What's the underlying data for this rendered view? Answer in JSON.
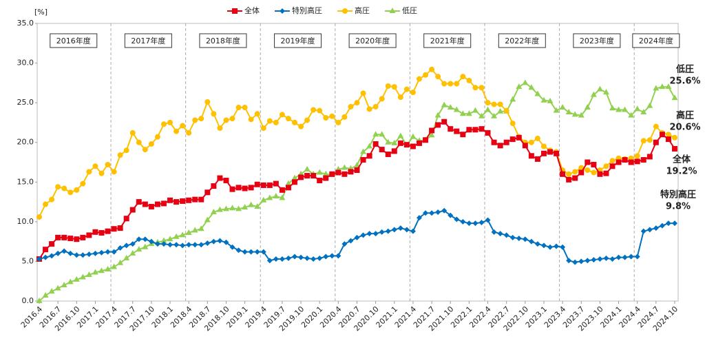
{
  "chart_data": {
    "type": "line",
    "y_label": "[%]",
    "categories": [
      "2016.4",
      null,
      null,
      "2016.7",
      null,
      null,
      "2016.10",
      null,
      null,
      "2017.1",
      null,
      null,
      "2017.4",
      null,
      null,
      "2017.7",
      null,
      null,
      "2017.10",
      null,
      null,
      "2018.1",
      null,
      null,
      "2018.4",
      null,
      null,
      "2018.7",
      null,
      null,
      "2018.10",
      null,
      null,
      "2019.1",
      null,
      null,
      "2019.4",
      null,
      null,
      "2019.7",
      null,
      null,
      "2019.10",
      null,
      null,
      "2020.1",
      null,
      null,
      "2020.4",
      null,
      null,
      "2020.7",
      null,
      null,
      "2020.10",
      null,
      null,
      "2021.1",
      null,
      null,
      "2021.4",
      null,
      null,
      "2021.7",
      null,
      null,
      "2021.10",
      null,
      null,
      "2022.1",
      null,
      null,
      "2022.4",
      null,
      null,
      "2022.7",
      null,
      null,
      "2022.10",
      null,
      null,
      "2023.1",
      null,
      null,
      "2023.4",
      null,
      null,
      "2023.7",
      null,
      null,
      "2023.10",
      null,
      null,
      "2024.1",
      null,
      null,
      "2024.4",
      null,
      null,
      "2024.7",
      null,
      null,
      "2024.10"
    ],
    "fiscal_years": [
      "2016年度",
      "2017年度",
      "2018年度",
      "2019年度",
      "2020年度",
      "2021年度",
      "2022年度",
      "2023年度",
      "2024年度"
    ],
    "series": [
      {
        "name": "全体",
        "color": "#e60012",
        "marker": "square",
        "end_label": "19.2%",
        "values": [
          5.3,
          6.5,
          7.2,
          8.0,
          8.0,
          7.9,
          7.8,
          8.0,
          8.3,
          8.7,
          8.6,
          8.8,
          9.1,
          9.2,
          10.4,
          11.5,
          12.5,
          12.2,
          11.9,
          12.2,
          12.3,
          12.7,
          12.5,
          12.6,
          12.7,
          12.8,
          12.8,
          13.7,
          14.5,
          15.5,
          15.2,
          14.1,
          14.3,
          14.2,
          14.3,
          14.7,
          14.6,
          14.6,
          14.8,
          14.0,
          14.3,
          15.0,
          15.6,
          15.8,
          15.8,
          15.2,
          15.5,
          16.0,
          16.2,
          16.0,
          16.3,
          16.5,
          17.8,
          18.3,
          19.8,
          19.1,
          18.5,
          18.9,
          19.9,
          19.7,
          19.5,
          19.9,
          20.3,
          21.5,
          22.2,
          22.6,
          21.7,
          21.4,
          21.0,
          21.6,
          21.6,
          21.7,
          21.2,
          20.0,
          19.6,
          20.0,
          20.4,
          20.6,
          19.6,
          18.3,
          17.9,
          18.6,
          18.8,
          18.6,
          16.0,
          15.3,
          15.5,
          16.2,
          17.5,
          17.2,
          16.0,
          16.1,
          17.0,
          17.5,
          17.8,
          17.5,
          17.6,
          17.8,
          18.2,
          20.0,
          21.0,
          20.4,
          19.2
        ]
      },
      {
        "name": "特別高圧",
        "color": "#0070c0",
        "marker": "diamond",
        "end_label": "9.8%",
        "values": [
          5.3,
          5.5,
          5.7,
          6.0,
          6.3,
          6.0,
          5.8,
          5.8,
          5.9,
          6.0,
          6.1,
          6.2,
          6.2,
          6.7,
          7.0,
          7.2,
          7.8,
          7.8,
          7.5,
          7.2,
          7.2,
          7.1,
          7.1,
          7.0,
          7.1,
          7.1,
          7.1,
          7.3,
          7.5,
          7.6,
          7.4,
          6.8,
          6.4,
          6.2,
          6.2,
          6.2,
          6.2,
          5.1,
          5.3,
          5.3,
          5.4,
          5.6,
          5.5,
          5.4,
          5.3,
          5.4,
          5.6,
          5.7,
          5.7,
          7.2,
          7.6,
          8.0,
          8.3,
          8.5,
          8.5,
          8.7,
          8.8,
          9.0,
          9.2,
          9.0,
          8.8,
          10.5,
          11.1,
          11.1,
          11.2,
          11.4,
          10.8,
          10.3,
          10.0,
          9.8,
          9.8,
          9.9,
          10.2,
          8.7,
          8.5,
          8.3,
          8.0,
          7.9,
          7.8,
          7.5,
          7.2,
          7.0,
          6.8,
          6.9,
          6.8,
          5.1,
          4.9,
          5.0,
          5.1,
          5.2,
          5.3,
          5.4,
          5.3,
          5.5,
          5.5,
          5.6,
          5.6,
          8.8,
          9.0,
          9.2,
          9.5,
          9.8,
          9.8
        ]
      },
      {
        "name": "高圧",
        "color": "#ffc000",
        "marker": "circle",
        "end_label": "20.6%",
        "values": [
          10.6,
          12.2,
          12.8,
          14.4,
          14.2,
          13.7,
          14.0,
          14.8,
          16.3,
          17.0,
          16.1,
          17.2,
          16.3,
          18.4,
          19.0,
          21.2,
          20.0,
          19.1,
          19.8,
          20.7,
          22.3,
          22.5,
          21.4,
          22.1,
          21.2,
          22.8,
          23.0,
          25.1,
          23.6,
          21.8,
          22.8,
          23.0,
          24.4,
          24.4,
          22.9,
          23.6,
          21.8,
          22.7,
          22.5,
          23.5,
          23.0,
          22.5,
          22.0,
          22.8,
          24.1,
          24.0,
          23.1,
          23.3,
          22.5,
          23.2,
          24.5,
          25.0,
          26.2,
          24.2,
          24.5,
          25.5,
          27.1,
          27.0,
          25.7,
          26.7,
          26.3,
          28.0,
          28.5,
          29.2,
          28.3,
          27.4,
          27.4,
          27.4,
          28.3,
          27.8,
          26.9,
          26.9,
          25.0,
          24.8,
          24.8,
          24.0,
          22.4,
          20.7,
          20.0,
          20.0,
          20.5,
          19.5,
          19.0,
          18.8,
          16.5,
          16.0,
          16.3,
          16.8,
          16.5,
          16.2,
          16.5,
          17.0,
          17.7,
          18.0,
          17.9,
          18.0,
          18.3,
          20.2,
          20.3,
          22.0,
          21.2,
          21.0,
          20.6
        ]
      },
      {
        "name": "低圧",
        "color": "#92d050",
        "marker": "triangle",
        "end_label": "25.6%",
        "values": [
          0.0,
          0.7,
          1.2,
          1.6,
          2.0,
          2.4,
          2.7,
          3.0,
          3.3,
          3.6,
          3.8,
          4.0,
          4.3,
          4.8,
          5.4,
          6.0,
          6.5,
          6.8,
          7.2,
          7.4,
          7.6,
          7.8,
          8.1,
          8.3,
          8.6,
          8.9,
          9.1,
          10.2,
          11.2,
          11.5,
          11.6,
          11.7,
          11.6,
          11.8,
          12.1,
          11.9,
          12.7,
          13.0,
          13.2,
          13.0,
          14.8,
          15.5,
          16.0,
          16.6,
          16.0,
          16.2,
          16.0,
          15.9,
          16.6,
          16.8,
          16.7,
          17.1,
          18.8,
          19.5,
          21.0,
          21.0,
          20.0,
          19.9,
          20.8,
          19.7,
          20.7,
          20.2,
          20.3,
          20.9,
          23.4,
          24.7,
          24.4,
          24.1,
          23.6,
          23.6,
          24.0,
          23.3,
          24.1,
          23.3,
          23.9,
          23.9,
          25.4,
          27.0,
          27.5,
          26.9,
          26.1,
          25.3,
          25.2,
          24.0,
          24.4,
          23.8,
          23.5,
          23.4,
          24.4,
          26.0,
          26.7,
          26.3,
          24.3,
          24.1,
          24.1,
          23.4,
          24.2,
          23.8,
          24.6,
          26.8,
          27.0,
          27.0,
          25.6
        ]
      }
    ],
    "ylim": [
      0,
      35
    ],
    "yticks": [
      {
        "value": 0,
        "label": "0.0"
      },
      {
        "value": 5,
        "label": "5.0"
      },
      {
        "value": 10,
        "label": "10.0"
      },
      {
        "value": 15,
        "label": "15.0"
      },
      {
        "value": 20,
        "label": "20.0"
      },
      {
        "value": 25,
        "label": "25.0"
      },
      {
        "value": 30,
        "label": "30.0"
      },
      {
        "value": 35,
        "label": "35.0"
      }
    ],
    "grid": false,
    "legend": "top"
  }
}
